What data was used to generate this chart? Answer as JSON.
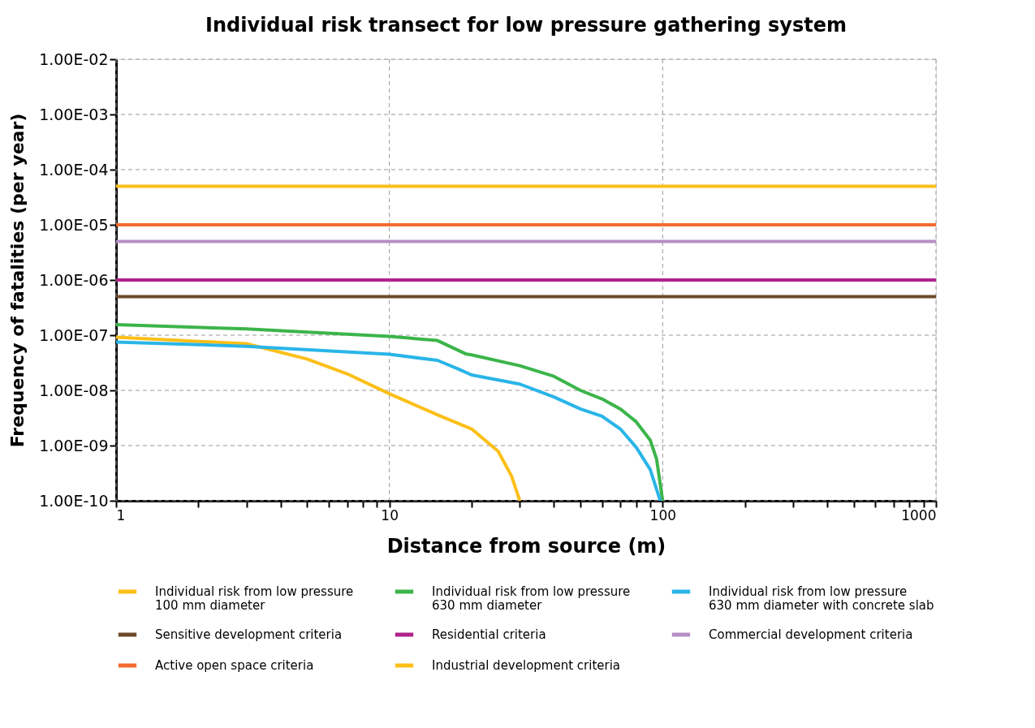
{
  "chart_data": {
    "type": "line",
    "title": "Individual risk transect for low pressure gathering system",
    "xlabel": "Distance from source (m)",
    "ylabel": "Frequency of fatalities (per year)",
    "log": "xy",
    "grid": true,
    "legend": "bottom",
    "line_style": "solid",
    "marker": "none",
    "xlim": [
      1,
      1000
    ],
    "ylim": [
      1e-10,
      0.01
    ],
    "xticks": [
      {
        "value": 1,
        "label": "1"
      },
      {
        "value": 2,
        "label": null
      },
      {
        "value": 3,
        "label": null
      },
      {
        "value": 4,
        "label": null
      },
      {
        "value": 5,
        "label": null
      },
      {
        "value": 6,
        "label": null
      },
      {
        "value": 7,
        "label": null
      },
      {
        "value": 8,
        "label": null
      },
      {
        "value": 9,
        "label": null
      },
      {
        "value": 10,
        "label": "10"
      },
      {
        "value": 20,
        "label": null
      },
      {
        "value": 30,
        "label": null
      },
      {
        "value": 40,
        "label": null
      },
      {
        "value": 50,
        "label": null
      },
      {
        "value": 60,
        "label": null
      },
      {
        "value": 70,
        "label": null
      },
      {
        "value": 80,
        "label": null
      },
      {
        "value": 90,
        "label": null
      },
      {
        "value": 100,
        "label": "100"
      },
      {
        "value": 200,
        "label": null
      },
      {
        "value": 300,
        "label": null
      },
      {
        "value": 400,
        "label": null
      },
      {
        "value": 500,
        "label": null
      },
      {
        "value": 600,
        "label": null
      },
      {
        "value": 700,
        "label": null
      },
      {
        "value": 800,
        "label": null
      },
      {
        "value": 900,
        "label": null
      },
      {
        "value": 1000,
        "label": "1000"
      }
    ],
    "yticks": [
      {
        "value": 1e-10,
        "label": "1.00E-10"
      },
      {
        "value": 1e-09,
        "label": "1.00E-09"
      },
      {
        "value": 1e-08,
        "label": "1.00E-08"
      },
      {
        "value": 1e-07,
        "label": "1.00E-07"
      },
      {
        "value": 1e-06,
        "label": "1.00E-06"
      },
      {
        "value": 1e-05,
        "label": "1.00E-05"
      },
      {
        "value": 0.0001,
        "label": "1.00E-04"
      },
      {
        "value": 0.001,
        "label": "1.00E-03"
      },
      {
        "value": 0.01,
        "label": "1.00E-02"
      }
    ],
    "series": [
      {
        "name": "Individual risk from low pressure\n100 mm diameter",
        "color": "#fbbf18",
        "x": [
          1,
          3,
          5,
          7,
          10,
          15,
          20,
          25,
          28,
          30
        ],
        "values": [
          9.2e-08,
          7e-08,
          3.7e-08,
          2e-08,
          8.7e-09,
          3.6e-09,
          2e-09,
          7.9e-10,
          2.8e-10,
          1e-10
        ]
      },
      {
        "name": "Individual risk from low pressure\n630 mm diameter",
        "color": "#3cb54a",
        "x": [
          1,
          3,
          10,
          15,
          19,
          20,
          30,
          40,
          50,
          60,
          70,
          80,
          90,
          95,
          100
        ],
        "values": [
          1.55e-07,
          1.3e-07,
          9.5e-08,
          8e-08,
          4.6e-08,
          4.4e-08,
          2.8e-08,
          1.8e-08,
          1e-08,
          7e-09,
          4.6e-09,
          2.7e-09,
          1.26e-09,
          5.7e-10,
          1e-10
        ]
      },
      {
        "name": "Individual risk from low pressure\n630 mm diameter with concrete slab",
        "color": "#29b5e8",
        "x": [
          1,
          3,
          10,
          15,
          18,
          20,
          30,
          40,
          50,
          60,
          70,
          80,
          90,
          98
        ],
        "values": [
          7.5e-08,
          6.3e-08,
          4.5e-08,
          3.5e-08,
          2.4e-08,
          1.9e-08,
          1.3e-08,
          7.6e-09,
          4.6e-09,
          3.4e-09,
          2e-09,
          9.3e-10,
          3.7e-10,
          1e-10
        ]
      },
      {
        "name": "Sensitive development criteria",
        "color": "#6e4a2a",
        "x": [
          1,
          1000
        ],
        "values": [
          5e-07,
          5e-07
        ]
      },
      {
        "name": "Residential criteria",
        "color": "#b0248b",
        "x": [
          1,
          1000
        ],
        "values": [
          1e-06,
          1e-06
        ]
      },
      {
        "name": "Commercial development criteria",
        "color": "#b68fc5",
        "x": [
          1,
          1000
        ],
        "values": [
          5e-06,
          5e-06
        ]
      },
      {
        "name": "Active open space criteria",
        "color": "#f26a2e",
        "x": [
          1,
          1000
        ],
        "values": [
          1e-05,
          1e-05
        ]
      },
      {
        "name": "Industrial development criteria",
        "color": "#fbbf18",
        "x": [
          1,
          1000
        ],
        "values": [
          5e-05,
          5e-05
        ]
      }
    ]
  }
}
